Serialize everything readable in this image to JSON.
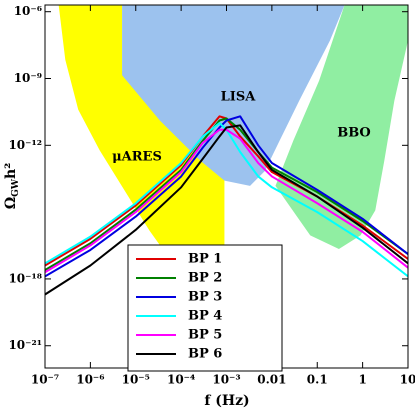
{
  "chart_data": {
    "type": "line",
    "x_label": "f (Hz)",
    "y_label": [
      "Ω",
      "GW",
      "h²"
    ],
    "xscale": "log",
    "yscale": "log",
    "xlim": [
      1e-07,
      10
    ],
    "ylim": [
      1e-22,
      2e-06
    ],
    "xticks": [
      {
        "value": 1e-07,
        "label": "10⁻⁷"
      },
      {
        "value": 1e-06,
        "label": "10⁻⁶"
      },
      {
        "value": 1e-05,
        "label": "10⁻⁵"
      },
      {
        "value": 0.0001,
        "label": "10⁻⁴"
      },
      {
        "value": 0.001,
        "label": "10⁻³"
      },
      0.01,
      0.1,
      1,
      10
    ],
    "yticks": [
      {
        "value": 1e-06,
        "label": "10⁻⁶"
      },
      {
        "value": 1e-09,
        "label": "10⁻⁹"
      },
      {
        "value": 1e-12,
        "label": "10⁻¹²"
      },
      {
        "value": 1e-18,
        "label": "10⁻¹⁸"
      },
      {
        "value": 1e-21,
        "label": "10⁻²¹"
      }
    ],
    "legend_loc": "lower center",
    "regions": [
      {
        "name": "μARES",
        "color": "#ffff00",
        "x": [
          2e-07,
          5e-06,
          5e-06,
          0.0009,
          0.0009,
          0.00026,
          2e-05,
          1.6e-06,
          5.4e-07,
          2.8e-07
        ],
        "y": [
          2e-06,
          2e-06,
          2.3e-09,
          7e-14,
          5e-21,
          1e-19,
          1.5e-16,
          6e-13,
          4e-11,
          7e-09
        ]
      },
      {
        "name": "LISA",
        "color": "#9cc2ee",
        "x": [
          5e-06,
          0.4,
          0.19,
          0.04,
          0.015,
          0.007,
          0.0033,
          0.0009,
          0.00026,
          3.4e-05,
          5e-06
        ],
        "y": [
          2e-06,
          2e-06,
          5e-08,
          1e-10,
          1.7e-12,
          7e-14,
          1.5e-14,
          2.6e-14,
          2.1e-13,
          1.3e-11,
          1.4e-09
        ]
      },
      {
        "name": "BBO",
        "color": "#90eea2",
        "x": [
          0.4,
          10,
          10,
          5,
          3,
          1.9,
          0.9,
          0.3,
          0.07,
          0.012,
          0.03,
          0.11
        ],
        "y": [
          2e-06,
          2e-06,
          5e-08,
          1e-10,
          2e-13,
          1.2e-15,
          9e-17,
          2.2e-17,
          9e-17,
          1.5e-14,
          1.7e-12,
          8e-10
        ]
      }
    ],
    "x": [
      1e-07,
      1e-06,
      1e-05,
      0.0001,
      0.0003,
      0.0007,
      0.001,
      0.002,
      0.005,
      0.01,
      0.1,
      1,
      10
    ],
    "series": [
      {
        "name": "BP 1",
        "color": "#e00000",
        "values": [
          4e-18,
          6.3e-17,
          2e-15,
          1.3e-13,
          2.5e-12,
          2e-11,
          1.6e-11,
          2.5e-12,
          3.2e-13,
          6.3e-14,
          5e-15,
          2.5e-16,
          7.9e-18
        ]
      },
      {
        "name": "BP 2",
        "color": "#008000",
        "values": [
          2.5e-18,
          4e-17,
          1.3e-15,
          7.9e-14,
          1.6e-12,
          1.3e-11,
          1.6e-11,
          5e-12,
          5e-13,
          1e-13,
          7.9e-15,
          4e-16,
          1.3e-17
        ]
      },
      {
        "name": "BP 3",
        "color": "#0000e0",
        "values": [
          1.3e-18,
          2e-17,
          6.3e-16,
          4e-14,
          7.9e-13,
          6.3e-12,
          1.3e-11,
          2e-11,
          1e-12,
          1.6e-13,
          1e-14,
          5e-16,
          1.3e-17
        ]
      },
      {
        "name": "BP 4",
        "color": "#00ffff",
        "values": [
          5e-18,
          7.9e-17,
          2.5e-15,
          1.6e-13,
          2.5e-12,
          1e-11,
          5e-12,
          5e-13,
          4e-14,
          1.3e-14,
          1e-15,
          5e-17,
          1.3e-18
        ]
      },
      {
        "name": "BP 5",
        "color": "#ff00ff",
        "values": [
          2e-18,
          3.2e-17,
          1e-15,
          6.3e-14,
          1.3e-12,
          5e-12,
          5e-12,
          2e-12,
          1.6e-13,
          4e-14,
          2.5e-15,
          1.3e-16,
          3.2e-18
        ]
      },
      {
        "name": "BP 6",
        "color": "#000000",
        "values": [
          2e-19,
          4e-18,
          1.6e-16,
          1.3e-14,
          2.5e-13,
          2.5e-12,
          6.3e-12,
          7.9e-12,
          5e-13,
          7.9e-14,
          5e-15,
          2e-16,
          5e-18
        ]
      }
    ]
  }
}
